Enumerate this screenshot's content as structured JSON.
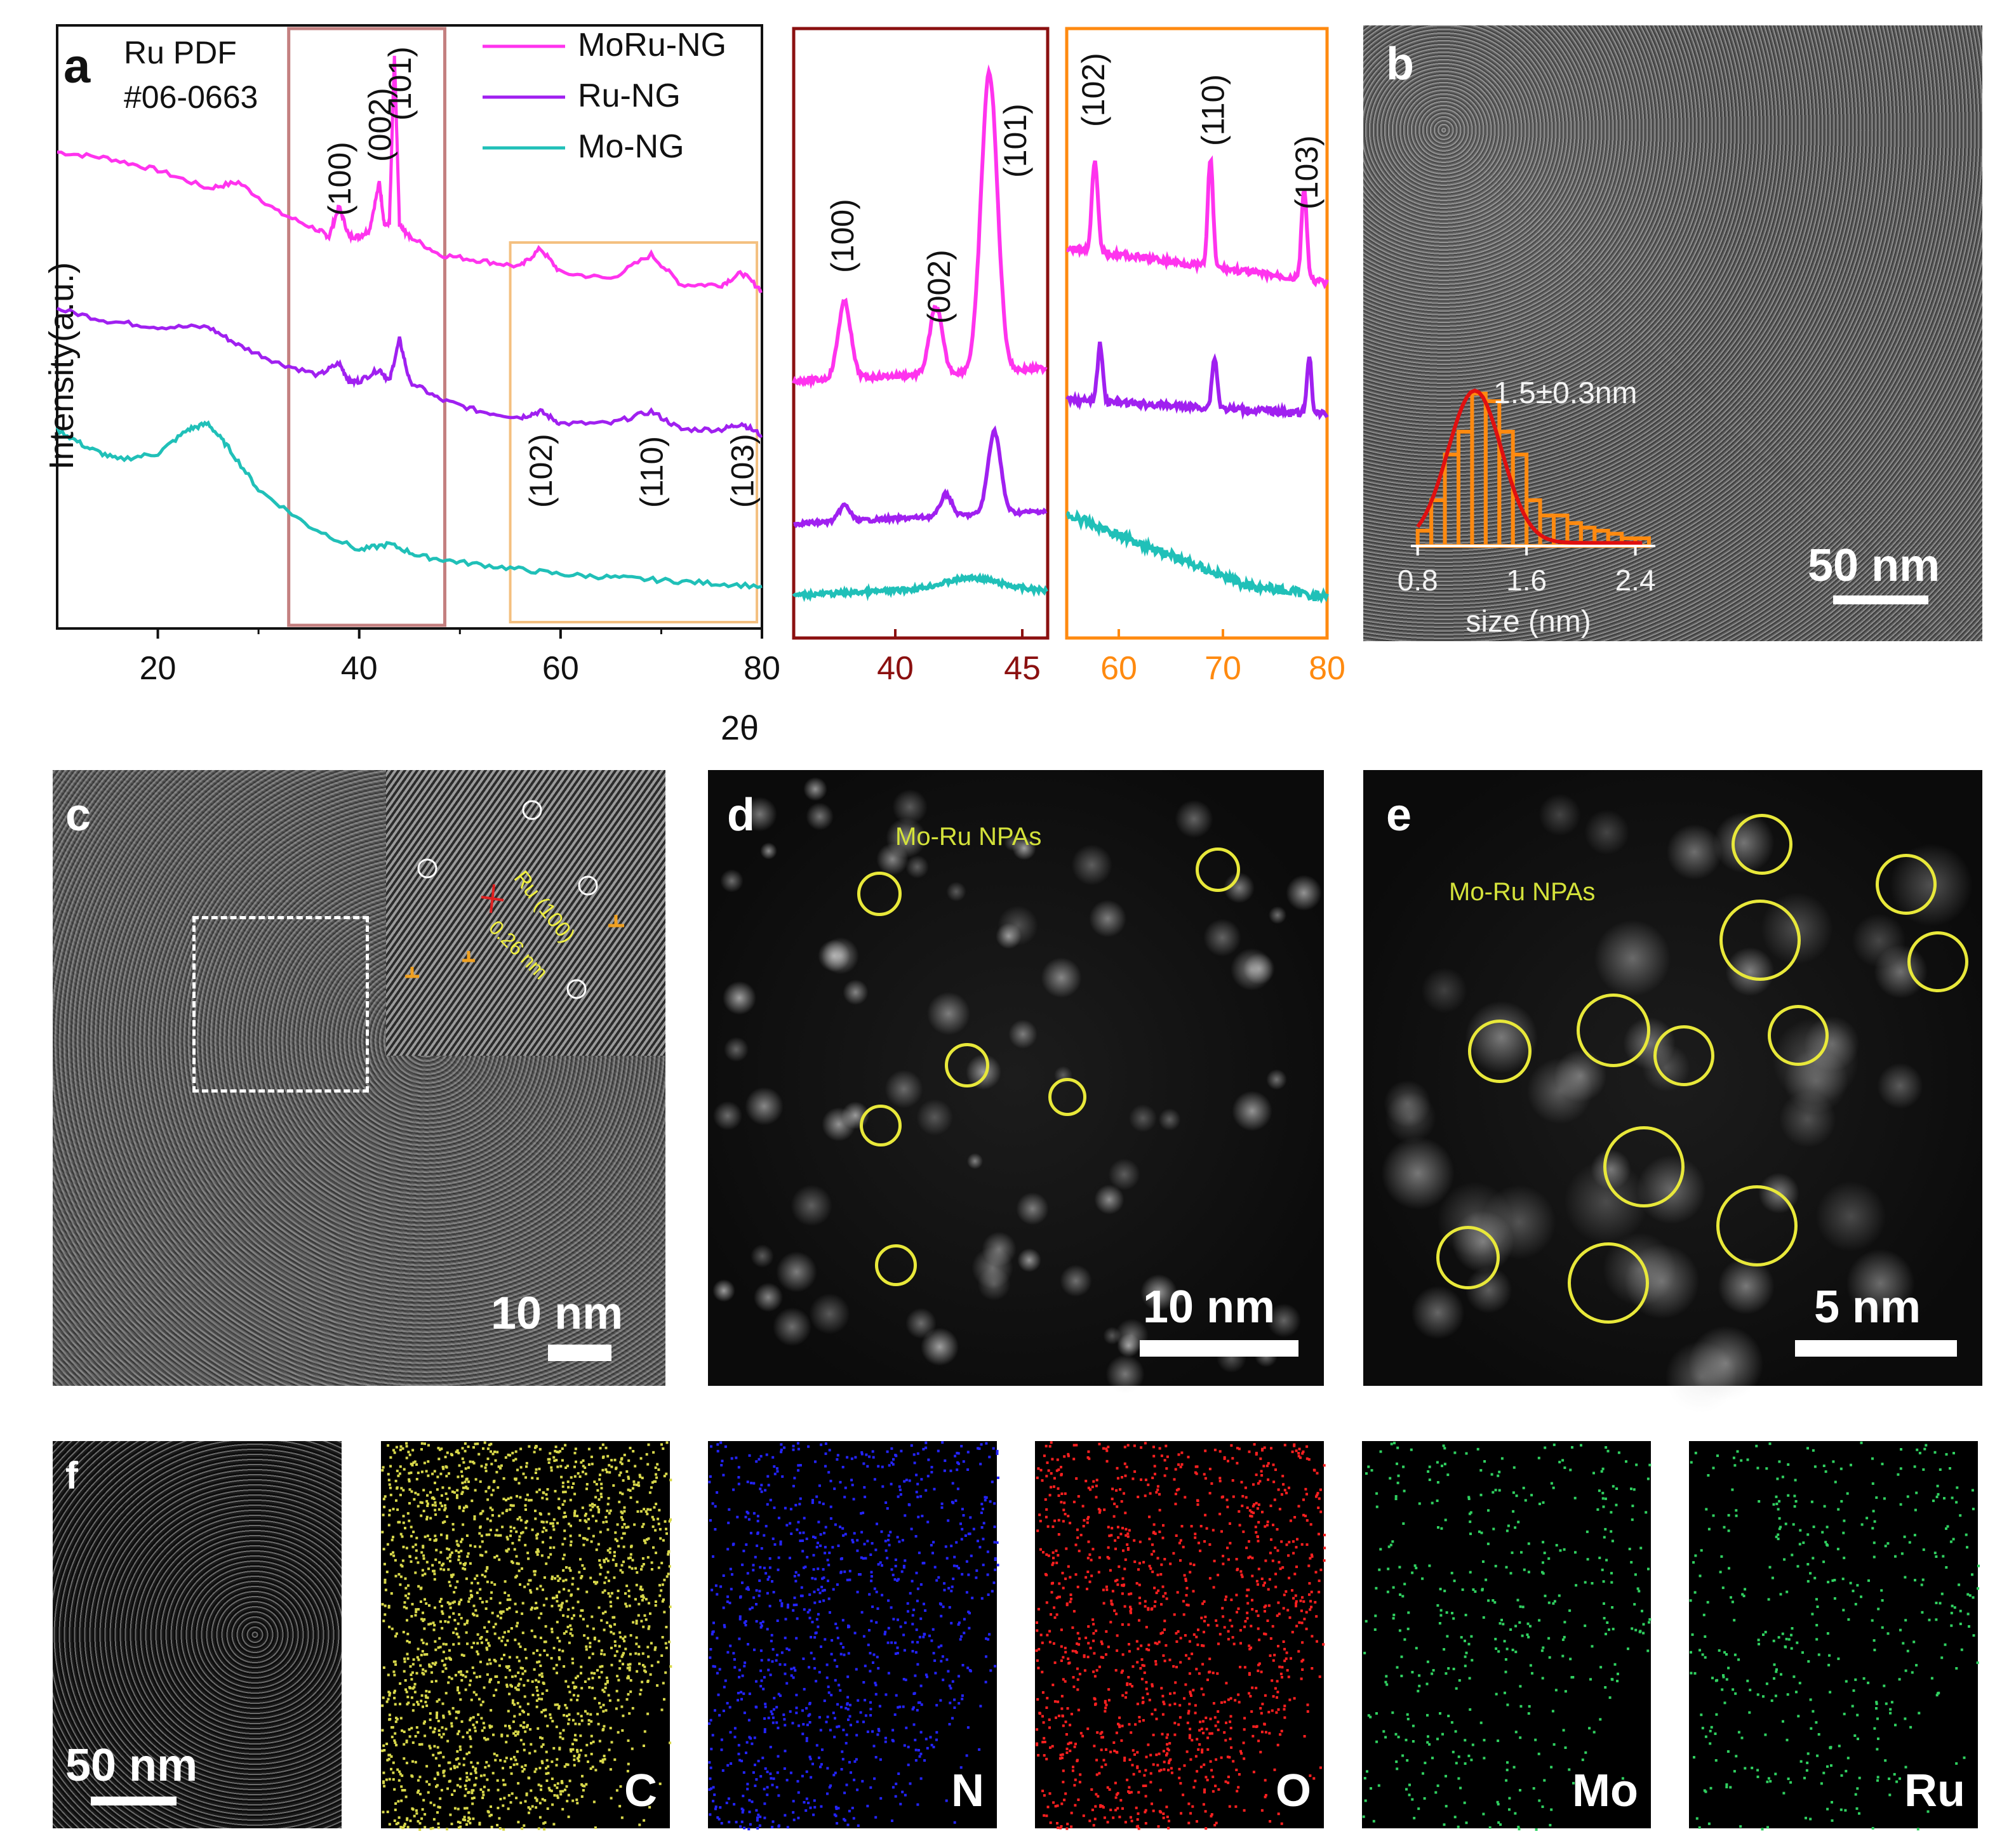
{
  "panel_letters": {
    "a": "a",
    "b": "b",
    "c": "c",
    "d": "d",
    "e": "e",
    "f": "f"
  },
  "chart_data": [
    {
      "type": "line",
      "panel": "a-main",
      "xlabel": "2θ",
      "ylabel": "Intensity(a.u.)",
      "xlim": [
        10,
        80
      ],
      "xticks": [
        20,
        40,
        60,
        80
      ],
      "reference_label_line1": "Ru PDF",
      "reference_label_line2": "#06-0663",
      "legend_position": "top-right",
      "series": [
        {
          "name": "MoRu-NG",
          "color": "#ff33ee",
          "x": [
            10,
            15,
            20,
            25,
            28,
            32,
            36,
            37,
            38,
            39,
            40,
            41,
            42,
            42.5,
            43,
            43.5,
            44,
            44.5,
            45,
            48,
            52,
            56,
            58,
            60,
            65,
            69,
            72,
            76,
            78,
            80
          ],
          "y": [
            0.79,
            0.78,
            0.76,
            0.73,
            0.74,
            0.69,
            0.66,
            0.65,
            0.7,
            0.65,
            0.65,
            0.66,
            0.74,
            0.67,
            0.67,
            0.95,
            0.67,
            0.66,
            0.65,
            0.62,
            0.61,
            0.6,
            0.63,
            0.59,
            0.58,
            0.62,
            0.57,
            0.57,
            0.59,
            0.56
          ]
        },
        {
          "name": "Ru-NG",
          "color": "#a020f0",
          "x": [
            10,
            15,
            20,
            25,
            28,
            32,
            36,
            38,
            39,
            40,
            42,
            43,
            44,
            45,
            48,
            52,
            56,
            58,
            60,
            65,
            69,
            72,
            76,
            78,
            80
          ],
          "y": [
            0.53,
            0.51,
            0.5,
            0.5,
            0.47,
            0.44,
            0.42,
            0.44,
            0.41,
            0.41,
            0.43,
            0.41,
            0.48,
            0.41,
            0.38,
            0.36,
            0.35,
            0.36,
            0.34,
            0.34,
            0.36,
            0.33,
            0.33,
            0.34,
            0.32
          ]
        },
        {
          "name": "Mo-NG",
          "color": "#20c0b8",
          "x": [
            10,
            13,
            16,
            20,
            23,
            25,
            27,
            30,
            35,
            40,
            43,
            46,
            50,
            55,
            60,
            65,
            70,
            75,
            80
          ],
          "y": [
            0.33,
            0.3,
            0.28,
            0.29,
            0.33,
            0.34,
            0.3,
            0.23,
            0.17,
            0.13,
            0.14,
            0.12,
            0.11,
            0.1,
            0.09,
            0.085,
            0.08,
            0.075,
            0.07
          ]
        }
      ],
      "peak_labels_top": [
        "(100)",
        "(002)",
        "(101)"
      ],
      "peak_labels_bottom": [
        "(102)",
        "(110)",
        "(103)"
      ]
    },
    {
      "type": "line",
      "panel": "a-zoom1",
      "xlim": [
        36,
        46
      ],
      "xticks": [
        40,
        45
      ],
      "tick_color": "#8b1010",
      "peak_labels": [
        "(100)",
        "(002)",
        "(101)"
      ]
    },
    {
      "type": "line",
      "panel": "a-zoom2",
      "xlim": [
        55,
        80
      ],
      "xticks": [
        60,
        70,
        80
      ],
      "tick_color": "#ff8a10",
      "peak_labels": [
        "(102)",
        "(110)",
        "(103)"
      ]
    },
    {
      "type": "bar",
      "panel": "b-inset-histogram",
      "xlabel": "size (nm)",
      "xticks": [
        "0.8",
        "1.6",
        "2.4"
      ],
      "annotation": "1.5±0.3nm",
      "categories": [
        0.8,
        0.9,
        1.0,
        1.1,
        1.2,
        1.3,
        1.4,
        1.5,
        1.6,
        1.7,
        1.8,
        1.9,
        2.0,
        2.1,
        2.2,
        2.3,
        2.4
      ],
      "values": [
        0.1,
        0.3,
        0.6,
        0.75,
        1.0,
        0.95,
        0.75,
        0.6,
        0.3,
        0.2,
        0.2,
        0.15,
        0.12,
        0.1,
        0.08,
        0.05,
        0.05
      ],
      "fit_color": "#e01010",
      "bar_color": "#ff8a10"
    }
  ],
  "panel_b": {
    "scale": "50 nm"
  },
  "panel_c": {
    "scale": "10 nm",
    "inset_label": "Ru (100)",
    "inset_spacing": "0.26 nm"
  },
  "panel_d": {
    "scale": "10 nm",
    "np_label": "Mo-Ru NPAs"
  },
  "panel_e": {
    "scale": "5 nm",
    "np_label": "Mo-Ru NPAs"
  },
  "panel_f": {
    "scale": "50 nm",
    "maps": [
      {
        "element": "C",
        "color": "#d8d84a"
      },
      {
        "element": "N",
        "color": "#2424ff"
      },
      {
        "element": "O",
        "color": "#ff2020"
      },
      {
        "element": "Mo",
        "color": "#30d060"
      },
      {
        "element": "Ru",
        "color": "#30d060"
      }
    ]
  }
}
